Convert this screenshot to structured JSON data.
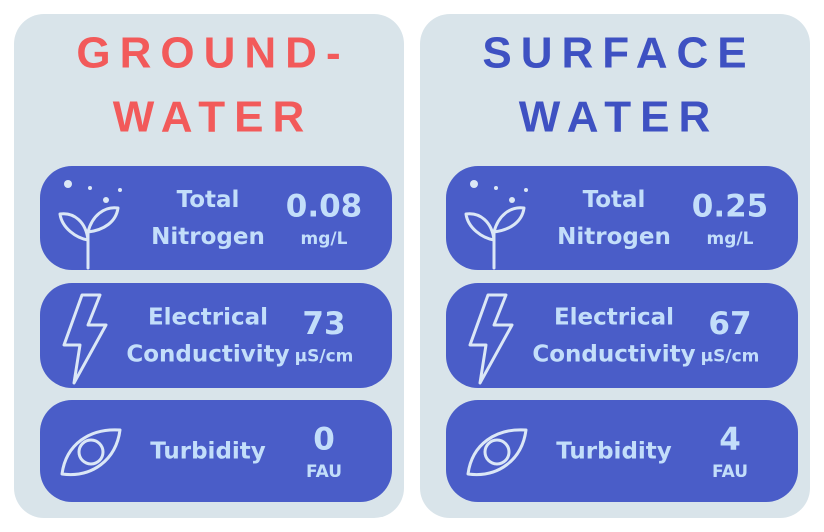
{
  "panels": [
    {
      "title_lines": [
        "GROUND-",
        "WATER"
      ],
      "title_color": "#f25a5a",
      "metrics": [
        {
          "label_lines": [
            "Total",
            "Nitrogen"
          ],
          "value": 0.08,
          "unit": "mg/L"
        },
        {
          "label_lines": [
            "Electrical",
            "Conductivity"
          ],
          "value": 73,
          "unit": "µS/cm"
        },
        {
          "label_lines": [
            "Turbidity"
          ],
          "value": 0,
          "unit": "FAU"
        }
      ]
    },
    {
      "title_lines": [
        "SURFACE",
        "WATER"
      ],
      "title_color": "#3e51c2",
      "metrics": [
        {
          "label_lines": [
            "Total",
            "Nitrogen"
          ],
          "value": 0.25,
          "unit": "mg/L"
        },
        {
          "label_lines": [
            "Electrical",
            "Conductivity"
          ],
          "value": 67,
          "unit": "µS/cm"
        },
        {
          "label_lines": [
            "Turbidity"
          ],
          "value": 4,
          "unit": "FAU"
        }
      ]
    }
  ]
}
